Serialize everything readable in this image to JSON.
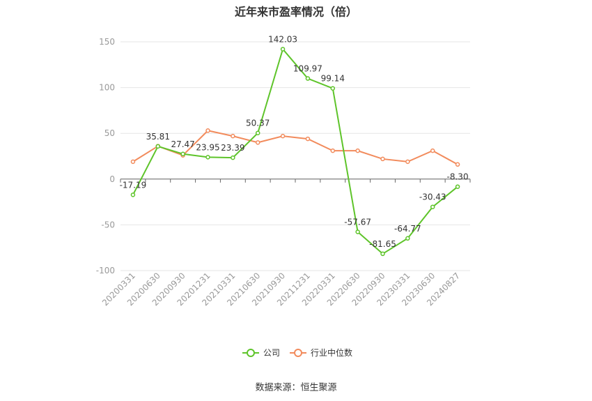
{
  "chart_data": {
    "type": "line",
    "title": "近年来市盈率情况（倍）",
    "categories": [
      "20200331",
      "20200630",
      "20200930",
      "20201231",
      "20210331",
      "20210630",
      "20210930",
      "20211231",
      "20220331",
      "20220630",
      "20220930",
      "20230331",
      "20230630",
      "20240827"
    ],
    "series": [
      {
        "name": "公司",
        "color": "#5ec42a",
        "values": [
          -17.19,
          35.81,
          27.47,
          23.95,
          23.39,
          50.37,
          142.03,
          109.97,
          99.14,
          -57.67,
          -81.65,
          -64.77,
          -30.43,
          -8.3
        ],
        "value_labels": [
          "-17.19",
          "35.81",
          "27.47",
          "23.95",
          "23.39",
          "50.37",
          "142.03",
          "109.97",
          "99.14",
          "-57.67",
          "-81.65",
          "-64.77",
          "-30.43",
          "-8.30"
        ]
      },
      {
        "name": "行业中位数",
        "color": "#f28b5c",
        "values": [
          19,
          36,
          26,
          53,
          47,
          40,
          47,
          44,
          31,
          31,
          22,
          19,
          31,
          16
        ]
      }
    ],
    "ylim": [
      -100,
      150
    ],
    "yticks": [
      -100,
      -50,
      0,
      50,
      100,
      150
    ],
    "grid": true,
    "source": "数据来源：恒生聚源"
  }
}
